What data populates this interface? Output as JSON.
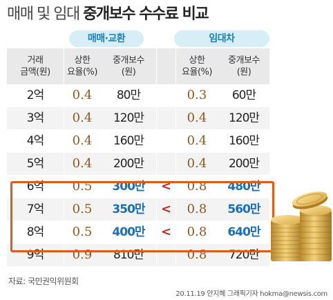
{
  "title": {
    "light": "매매 및 임대",
    "bold": "중개보수 수수료 비교"
  },
  "groups": {
    "sale": "매매·교환",
    "lease": "임대차"
  },
  "headers": {
    "amount": [
      "거래",
      "금액(원)"
    ],
    "sale_rate": [
      "상한",
      "요율(%)"
    ],
    "sale_fee": [
      "중개보수",
      "(원)"
    ],
    "lease_rate": [
      "상한",
      "요율(%)"
    ],
    "lease_fee": [
      "중개보수",
      "(원)"
    ]
  },
  "rows": [
    {
      "amount": "2억",
      "sale_rate": "0.4",
      "sale_fee": "80만",
      "cmp": "",
      "lease_rate": "0.3",
      "lease_fee": "60만"
    },
    {
      "amount": "3억",
      "sale_rate": "0.4",
      "sale_fee": "120만",
      "cmp": "",
      "lease_rate": "0.4",
      "lease_fee": "120만"
    },
    {
      "amount": "4억",
      "sale_rate": "0.4",
      "sale_fee": "160만",
      "cmp": "",
      "lease_rate": "0.4",
      "lease_fee": "160만"
    },
    {
      "amount": "5억",
      "sale_rate": "0.4",
      "sale_fee": "200만",
      "cmp": "",
      "lease_rate": "0.4",
      "lease_fee": "200만"
    },
    {
      "amount": "6억",
      "sale_rate": "0.5",
      "sale_fee": "300만",
      "cmp": "<",
      "lease_rate": "0.8",
      "lease_fee": "480만"
    },
    {
      "amount": "7억",
      "sale_rate": "0.5",
      "sale_fee": "350만",
      "cmp": "<",
      "lease_rate": "0.8",
      "lease_fee": "560만"
    },
    {
      "amount": "8억",
      "sale_rate": "0.5",
      "sale_fee": "400만",
      "cmp": "<",
      "lease_rate": "0.8",
      "lease_fee": "640만"
    },
    {
      "amount": "9억",
      "sale_rate": "0.9",
      "sale_fee": "810만",
      "cmp": "",
      "lease_rate": "0.8",
      "lease_fee": "720만"
    }
  ],
  "highlighted_rows": [
    4,
    5,
    6
  ],
  "source": "자료: 국민권익위원회",
  "credit": "20.11.19 안지혜 그래픽기자 hokma@newsis.com",
  "colors": {
    "accent_blue": "#1a6fb5",
    "highlight_border": "#e05a1a",
    "comparison": "#c4261d",
    "rate_text": "#8b5a20",
    "group_header_bg": "#d8eef6"
  },
  "decoration": "gold-coin-stack"
}
